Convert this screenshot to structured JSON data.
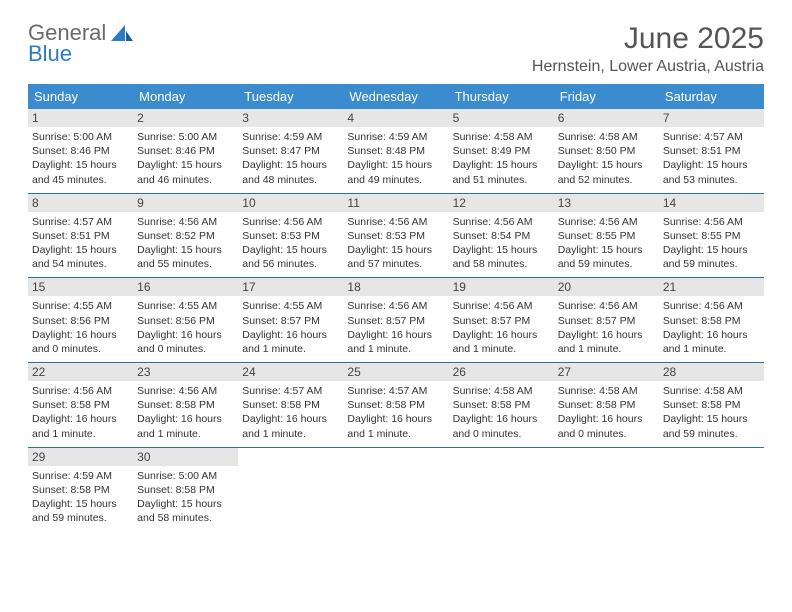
{
  "brand": {
    "line1": "General",
    "line2": "Blue"
  },
  "title": "June 2025",
  "location": "Hernstein, Lower Austria, Austria",
  "weekdays": [
    "Sunday",
    "Monday",
    "Tuesday",
    "Wednesday",
    "Thursday",
    "Friday",
    "Saturday"
  ],
  "colors": {
    "header_bg": "#3a8ccf",
    "divider": "#2f6fa8",
    "daynum_bg": "#e6e6e6",
    "brand_gray": "#6a6a6a",
    "brand_blue": "#2a7cc4"
  },
  "days": [
    {
      "n": "1",
      "sunrise": "Sunrise: 5:00 AM",
      "sunset": "Sunset: 8:46 PM",
      "daylight": "Daylight: 15 hours and 45 minutes."
    },
    {
      "n": "2",
      "sunrise": "Sunrise: 5:00 AM",
      "sunset": "Sunset: 8:46 PM",
      "daylight": "Daylight: 15 hours and 46 minutes."
    },
    {
      "n": "3",
      "sunrise": "Sunrise: 4:59 AM",
      "sunset": "Sunset: 8:47 PM",
      "daylight": "Daylight: 15 hours and 48 minutes."
    },
    {
      "n": "4",
      "sunrise": "Sunrise: 4:59 AM",
      "sunset": "Sunset: 8:48 PM",
      "daylight": "Daylight: 15 hours and 49 minutes."
    },
    {
      "n": "5",
      "sunrise": "Sunrise: 4:58 AM",
      "sunset": "Sunset: 8:49 PM",
      "daylight": "Daylight: 15 hours and 51 minutes."
    },
    {
      "n": "6",
      "sunrise": "Sunrise: 4:58 AM",
      "sunset": "Sunset: 8:50 PM",
      "daylight": "Daylight: 15 hours and 52 minutes."
    },
    {
      "n": "7",
      "sunrise": "Sunrise: 4:57 AM",
      "sunset": "Sunset: 8:51 PM",
      "daylight": "Daylight: 15 hours and 53 minutes."
    },
    {
      "n": "8",
      "sunrise": "Sunrise: 4:57 AM",
      "sunset": "Sunset: 8:51 PM",
      "daylight": "Daylight: 15 hours and 54 minutes."
    },
    {
      "n": "9",
      "sunrise": "Sunrise: 4:56 AM",
      "sunset": "Sunset: 8:52 PM",
      "daylight": "Daylight: 15 hours and 55 minutes."
    },
    {
      "n": "10",
      "sunrise": "Sunrise: 4:56 AM",
      "sunset": "Sunset: 8:53 PM",
      "daylight": "Daylight: 15 hours and 56 minutes."
    },
    {
      "n": "11",
      "sunrise": "Sunrise: 4:56 AM",
      "sunset": "Sunset: 8:53 PM",
      "daylight": "Daylight: 15 hours and 57 minutes."
    },
    {
      "n": "12",
      "sunrise": "Sunrise: 4:56 AM",
      "sunset": "Sunset: 8:54 PM",
      "daylight": "Daylight: 15 hours and 58 minutes."
    },
    {
      "n": "13",
      "sunrise": "Sunrise: 4:56 AM",
      "sunset": "Sunset: 8:55 PM",
      "daylight": "Daylight: 15 hours and 59 minutes."
    },
    {
      "n": "14",
      "sunrise": "Sunrise: 4:56 AM",
      "sunset": "Sunset: 8:55 PM",
      "daylight": "Daylight: 15 hours and 59 minutes."
    },
    {
      "n": "15",
      "sunrise": "Sunrise: 4:55 AM",
      "sunset": "Sunset: 8:56 PM",
      "daylight": "Daylight: 16 hours and 0 minutes."
    },
    {
      "n": "16",
      "sunrise": "Sunrise: 4:55 AM",
      "sunset": "Sunset: 8:56 PM",
      "daylight": "Daylight: 16 hours and 0 minutes."
    },
    {
      "n": "17",
      "sunrise": "Sunrise: 4:55 AM",
      "sunset": "Sunset: 8:57 PM",
      "daylight": "Daylight: 16 hours and 1 minute."
    },
    {
      "n": "18",
      "sunrise": "Sunrise: 4:56 AM",
      "sunset": "Sunset: 8:57 PM",
      "daylight": "Daylight: 16 hours and 1 minute."
    },
    {
      "n": "19",
      "sunrise": "Sunrise: 4:56 AM",
      "sunset": "Sunset: 8:57 PM",
      "daylight": "Daylight: 16 hours and 1 minute."
    },
    {
      "n": "20",
      "sunrise": "Sunrise: 4:56 AM",
      "sunset": "Sunset: 8:57 PM",
      "daylight": "Daylight: 16 hours and 1 minute."
    },
    {
      "n": "21",
      "sunrise": "Sunrise: 4:56 AM",
      "sunset": "Sunset: 8:58 PM",
      "daylight": "Daylight: 16 hours and 1 minute."
    },
    {
      "n": "22",
      "sunrise": "Sunrise: 4:56 AM",
      "sunset": "Sunset: 8:58 PM",
      "daylight": "Daylight: 16 hours and 1 minute."
    },
    {
      "n": "23",
      "sunrise": "Sunrise: 4:56 AM",
      "sunset": "Sunset: 8:58 PM",
      "daylight": "Daylight: 16 hours and 1 minute."
    },
    {
      "n": "24",
      "sunrise": "Sunrise: 4:57 AM",
      "sunset": "Sunset: 8:58 PM",
      "daylight": "Daylight: 16 hours and 1 minute."
    },
    {
      "n": "25",
      "sunrise": "Sunrise: 4:57 AM",
      "sunset": "Sunset: 8:58 PM",
      "daylight": "Daylight: 16 hours and 1 minute."
    },
    {
      "n": "26",
      "sunrise": "Sunrise: 4:58 AM",
      "sunset": "Sunset: 8:58 PM",
      "daylight": "Daylight: 16 hours and 0 minutes."
    },
    {
      "n": "27",
      "sunrise": "Sunrise: 4:58 AM",
      "sunset": "Sunset: 8:58 PM",
      "daylight": "Daylight: 16 hours and 0 minutes."
    },
    {
      "n": "28",
      "sunrise": "Sunrise: 4:58 AM",
      "sunset": "Sunset: 8:58 PM",
      "daylight": "Daylight: 15 hours and 59 minutes."
    },
    {
      "n": "29",
      "sunrise": "Sunrise: 4:59 AM",
      "sunset": "Sunset: 8:58 PM",
      "daylight": "Daylight: 15 hours and 59 minutes."
    },
    {
      "n": "30",
      "sunrise": "Sunrise: 5:00 AM",
      "sunset": "Sunset: 8:58 PM",
      "daylight": "Daylight: 15 hours and 58 minutes."
    }
  ]
}
